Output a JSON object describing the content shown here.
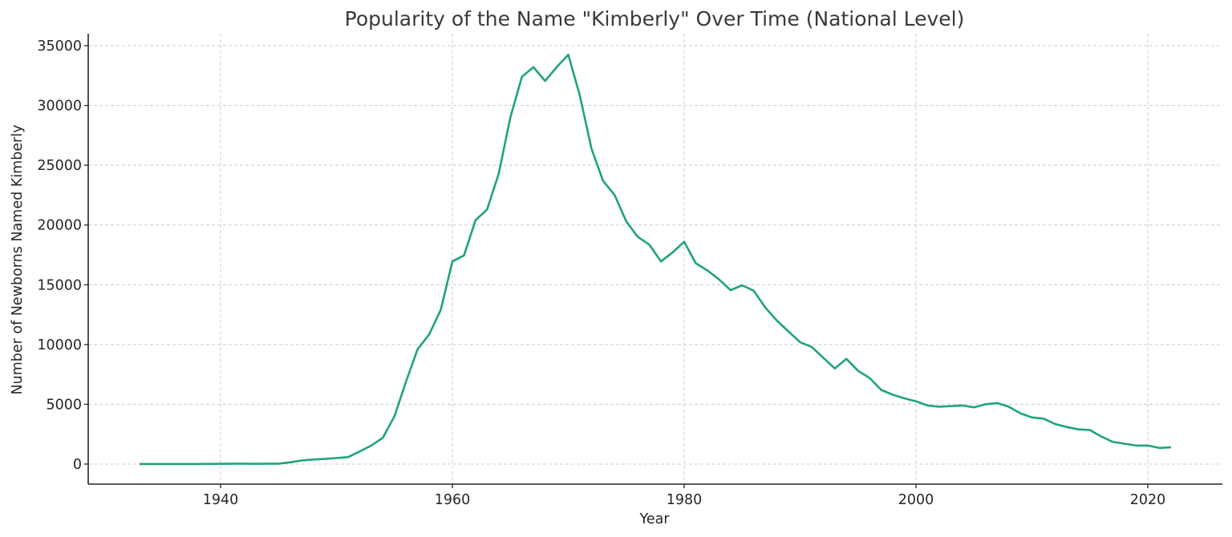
{
  "chart_data": {
    "type": "line",
    "title": "Popularity of the Name \"Kimberly\" Over Time (National Level)",
    "xlabel": "Year",
    "ylabel": "Number of Newborns Named Kimberly",
    "xlim": [
      1928,
      2026
    ],
    "ylim": [
      -1700,
      36000
    ],
    "x_ticks": [
      1940,
      1960,
      1980,
      2000,
      2020
    ],
    "y_ticks": [
      0,
      5000,
      10000,
      15000,
      20000,
      25000,
      30000,
      35000
    ],
    "grid": true,
    "legend": null,
    "series": [
      {
        "name": "Kimberly",
        "color": "#1fa37f",
        "x": [
          1933,
          1934,
          1935,
          1936,
          1937,
          1938,
          1939,
          1940,
          1941,
          1942,
          1943,
          1944,
          1945,
          1946,
          1947,
          1948,
          1949,
          1950,
          1951,
          1952,
          1953,
          1954,
          1955,
          1956,
          1957,
          1958,
          1959,
          1960,
          1961,
          1962,
          1963,
          1964,
          1965,
          1966,
          1967,
          1968,
          1969,
          1970,
          1971,
          1972,
          1973,
          1974,
          1975,
          1976,
          1977,
          1978,
          1979,
          1980,
          1981,
          1982,
          1983,
          1984,
          1985,
          1986,
          1987,
          1988,
          1989,
          1990,
          1991,
          1992,
          1993,
          1994,
          1995,
          1996,
          1997,
          1998,
          1999,
          2000,
          2001,
          2002,
          2003,
          2004,
          2005,
          2006,
          2007,
          2008,
          2009,
          2010,
          2011,
          2012,
          2013,
          2014,
          2015,
          2016,
          2017,
          2018,
          2019,
          2020,
          2021,
          2022
        ],
        "values": [
          5,
          5,
          5,
          5,
          5,
          8,
          12,
          20,
          30,
          25,
          20,
          25,
          30,
          150,
          300,
          380,
          430,
          500,
          580,
          1050,
          1550,
          2200,
          4000,
          6900,
          9600,
          10850,
          12900,
          16950,
          17450,
          20400,
          21300,
          24300,
          29000,
          32400,
          33200,
          32050,
          33200,
          34250,
          30800,
          26400,
          23700,
          22500,
          20300,
          19000,
          18350,
          16950,
          17700,
          18600,
          16800,
          16200,
          15450,
          14550,
          14950,
          14500,
          13100,
          12000,
          11100,
          10200,
          9800,
          8900,
          8000,
          8800,
          7800,
          7200,
          6200,
          5800,
          5500,
          5250,
          4900,
          4800,
          4850,
          4900,
          4750,
          5000,
          5100,
          4800,
          4250,
          3900,
          3800,
          3350,
          3100,
          2900,
          2850,
          2300,
          1850,
          1700,
          1550,
          1550,
          1350,
          1400
        ]
      }
    ]
  },
  "colors": {
    "line": "#1fa37f",
    "grid": "#cccccc",
    "axis": "#262626",
    "title": "#3a3a3a"
  }
}
